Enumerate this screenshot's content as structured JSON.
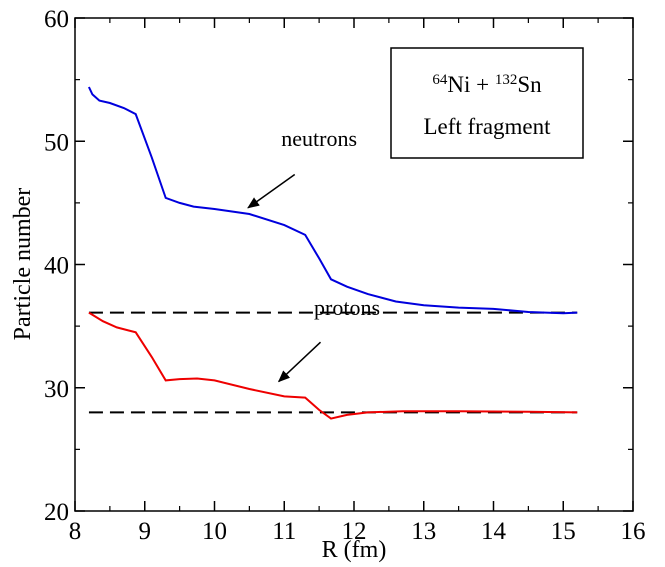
{
  "chart_data": {
    "type": "line",
    "title": "",
    "xlabel": "R (fm)",
    "ylabel": "Particle number",
    "xlim": [
      8,
      16
    ],
    "ylim": [
      20,
      60
    ],
    "x_ticks": [
      8,
      9,
      10,
      11,
      12,
      13,
      14,
      15,
      16
    ],
    "y_ticks": [
      20,
      30,
      40,
      50,
      60
    ],
    "grid": false,
    "legend_placement": "top-right",
    "legend": {
      "reaction_parts": [
        {
          "sup": "64",
          "text": "Ni + "
        },
        {
          "sup": "132",
          "text": "Sn"
        }
      ],
      "subtitle": "Left fragment"
    },
    "series": [
      {
        "name": "neutrons",
        "color": "#0000dd",
        "points": [
          [
            8.2,
            54.4
          ],
          [
            8.25,
            53.8
          ],
          [
            8.35,
            53.3
          ],
          [
            8.5,
            53.1
          ],
          [
            8.7,
            52.7
          ],
          [
            8.87,
            52.2
          ],
          [
            9.1,
            48.7
          ],
          [
            9.3,
            45.4
          ],
          [
            9.5,
            45.0
          ],
          [
            9.7,
            44.7
          ],
          [
            10.0,
            44.5
          ],
          [
            10.5,
            44.1
          ],
          [
            11.0,
            43.2
          ],
          [
            11.3,
            42.4
          ],
          [
            11.5,
            40.5
          ],
          [
            11.67,
            38.8
          ],
          [
            11.9,
            38.2
          ],
          [
            12.2,
            37.6
          ],
          [
            12.6,
            37.0
          ],
          [
            13.0,
            36.7
          ],
          [
            13.5,
            36.5
          ],
          [
            14.0,
            36.4
          ],
          [
            14.5,
            36.15
          ],
          [
            15.0,
            36.05
          ],
          [
            15.2,
            36.1
          ]
        ]
      },
      {
        "name": "protons",
        "color": "#ee0000",
        "points": [
          [
            8.2,
            36.1
          ],
          [
            8.4,
            35.4
          ],
          [
            8.6,
            34.9
          ],
          [
            8.87,
            34.5
          ],
          [
            9.1,
            32.5
          ],
          [
            9.3,
            30.6
          ],
          [
            9.5,
            30.7
          ],
          [
            9.75,
            30.75
          ],
          [
            10.0,
            30.6
          ],
          [
            10.5,
            29.9
          ],
          [
            11.0,
            29.3
          ],
          [
            11.3,
            29.2
          ],
          [
            11.5,
            28.2
          ],
          [
            11.67,
            27.5
          ],
          [
            11.9,
            27.8
          ],
          [
            12.2,
            28.0
          ],
          [
            12.7,
            28.1
          ],
          [
            13.5,
            28.1
          ],
          [
            14.5,
            28.05
          ],
          [
            15.2,
            28.0
          ]
        ]
      }
    ],
    "reference_lines": [
      {
        "y": 36.1,
        "x_range": [
          8.2,
          15.2
        ],
        "style": "dashed",
        "color": "#000000"
      },
      {
        "y": 28.0,
        "x_range": [
          8.2,
          15.2
        ],
        "style": "dashed",
        "color": "#000000"
      }
    ],
    "annotations": [
      {
        "text": "neutrons",
        "arrow_to": [
          10.48,
          44.6
        ],
        "arrow_from": [
          11.15,
          47.3
        ],
        "label_at": [
          11.5,
          49.6
        ]
      },
      {
        "text": "protons",
        "arrow_to": [
          10.92,
          30.5
        ],
        "arrow_from": [
          11.52,
          33.7
        ],
        "label_at": [
          11.9,
          35.9
        ]
      }
    ]
  }
}
